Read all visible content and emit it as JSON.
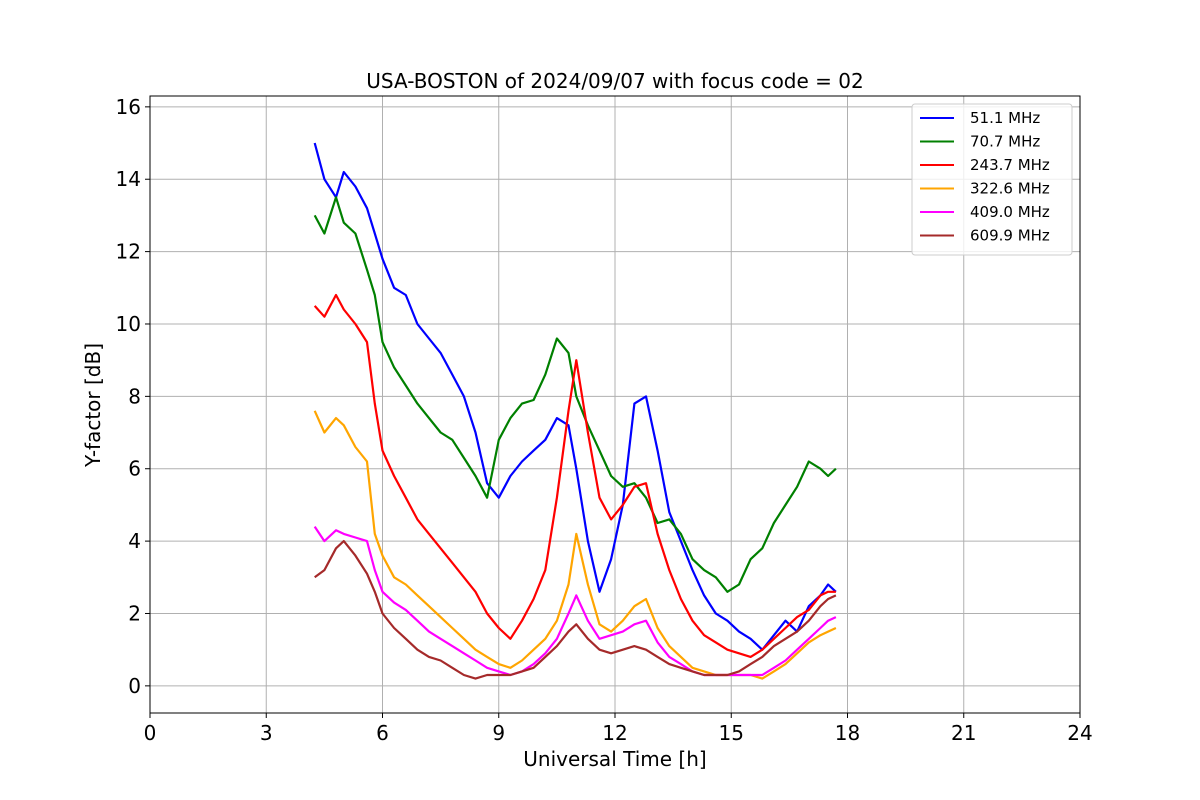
{
  "chart_data": {
    "type": "line",
    "title": "USA-BOSTON of 2024/09/07 with focus code = 02",
    "xlabel": "Universal Time [h]",
    "ylabel": "Y-factor [dB]",
    "xlim": [
      0,
      24
    ],
    "ylim": [
      -0.75,
      16.3
    ],
    "xticks": [
      0,
      3,
      6,
      9,
      12,
      15,
      18,
      21,
      24
    ],
    "yticks": [
      0,
      2,
      4,
      6,
      8,
      10,
      12,
      14,
      16
    ],
    "grid": true,
    "legend_position": "top-right",
    "series": [
      {
        "name": "51.1 MHz",
        "color": "#0000ff",
        "x": [
          4.25,
          4.5,
          4.8,
          5.0,
          5.3,
          5.6,
          5.8,
          6.0,
          6.3,
          6.6,
          6.9,
          7.2,
          7.5,
          7.8,
          8.1,
          8.4,
          8.7,
          9.0,
          9.3,
          9.6,
          9.9,
          10.2,
          10.5,
          10.8,
          11.0,
          11.3,
          11.6,
          11.9,
          12.2,
          12.5,
          12.8,
          13.1,
          13.4,
          13.7,
          14.0,
          14.3,
          14.6,
          14.9,
          15.2,
          15.5,
          15.8,
          16.1,
          16.4,
          16.7,
          17.0,
          17.3,
          17.5,
          17.7
        ],
        "y": [
          15.0,
          14.0,
          13.5,
          14.2,
          13.8,
          13.2,
          12.5,
          11.8,
          11.0,
          10.8,
          10.0,
          9.6,
          9.2,
          8.6,
          8.0,
          7.0,
          5.6,
          5.2,
          5.8,
          6.2,
          6.5,
          6.8,
          7.4,
          7.2,
          6.0,
          4.0,
          2.6,
          3.5,
          5.0,
          7.8,
          8.0,
          6.5,
          4.8,
          4.0,
          3.2,
          2.5,
          2.0,
          1.8,
          1.5,
          1.3,
          1.0,
          1.4,
          1.8,
          1.5,
          2.2,
          2.5,
          2.8,
          2.6
        ]
      },
      {
        "name": "70.7 MHz",
        "color": "#008000",
        "x": [
          4.25,
          4.5,
          4.8,
          5.0,
          5.3,
          5.6,
          5.8,
          6.0,
          6.3,
          6.6,
          6.9,
          7.2,
          7.5,
          7.8,
          8.1,
          8.4,
          8.7,
          9.0,
          9.3,
          9.6,
          9.9,
          10.2,
          10.5,
          10.8,
          11.0,
          11.3,
          11.6,
          11.9,
          12.2,
          12.5,
          12.8,
          13.1,
          13.4,
          13.7,
          14.0,
          14.3,
          14.6,
          14.9,
          15.2,
          15.5,
          15.8,
          16.1,
          16.4,
          16.7,
          17.0,
          17.3,
          17.5,
          17.7
        ],
        "y": [
          13.0,
          12.5,
          13.5,
          12.8,
          12.5,
          11.5,
          10.8,
          9.5,
          8.8,
          8.3,
          7.8,
          7.4,
          7.0,
          6.8,
          6.3,
          5.8,
          5.2,
          6.8,
          7.4,
          7.8,
          7.9,
          8.6,
          9.6,
          9.2,
          8.0,
          7.2,
          6.5,
          5.8,
          5.5,
          5.6,
          5.2,
          4.5,
          4.6,
          4.2,
          3.5,
          3.2,
          3.0,
          2.6,
          2.8,
          3.5,
          3.8,
          4.5,
          5.0,
          5.5,
          6.2,
          6.0,
          5.8,
          6.0
        ]
      },
      {
        "name": "243.7 MHz",
        "color": "#ff0000",
        "x": [
          4.25,
          4.5,
          4.8,
          5.0,
          5.3,
          5.6,
          5.8,
          6.0,
          6.3,
          6.6,
          6.9,
          7.2,
          7.5,
          7.8,
          8.1,
          8.4,
          8.7,
          9.0,
          9.3,
          9.6,
          9.9,
          10.2,
          10.5,
          10.8,
          11.0,
          11.3,
          11.6,
          11.9,
          12.2,
          12.5,
          12.8,
          13.1,
          13.4,
          13.7,
          14.0,
          14.3,
          14.6,
          14.9,
          15.2,
          15.5,
          15.8,
          16.1,
          16.4,
          16.7,
          17.0,
          17.3,
          17.5,
          17.7
        ],
        "y": [
          10.5,
          10.2,
          10.8,
          10.4,
          10.0,
          9.5,
          7.8,
          6.5,
          5.8,
          5.2,
          4.6,
          4.2,
          3.8,
          3.4,
          3.0,
          2.6,
          2.0,
          1.6,
          1.3,
          1.8,
          2.4,
          3.2,
          5.2,
          7.6,
          9.0,
          7.0,
          5.2,
          4.6,
          5.0,
          5.5,
          5.6,
          4.2,
          3.2,
          2.4,
          1.8,
          1.4,
          1.2,
          1.0,
          0.9,
          0.8,
          1.0,
          1.3,
          1.6,
          1.9,
          2.1,
          2.5,
          2.6,
          2.6
        ]
      },
      {
        "name": "322.6 MHz",
        "color": "#ffa500",
        "x": [
          4.25,
          4.5,
          4.8,
          5.0,
          5.3,
          5.6,
          5.8,
          6.0,
          6.3,
          6.6,
          6.9,
          7.2,
          7.5,
          7.8,
          8.1,
          8.4,
          8.7,
          9.0,
          9.3,
          9.6,
          9.9,
          10.2,
          10.5,
          10.8,
          11.0,
          11.3,
          11.6,
          11.9,
          12.2,
          12.5,
          12.8,
          13.1,
          13.4,
          13.7,
          14.0,
          14.3,
          14.6,
          14.9,
          15.2,
          15.5,
          15.8,
          16.1,
          16.4,
          16.7,
          17.0,
          17.3,
          17.5,
          17.7
        ],
        "y": [
          7.6,
          7.0,
          7.4,
          7.2,
          6.6,
          6.2,
          4.2,
          3.6,
          3.0,
          2.8,
          2.5,
          2.2,
          1.9,
          1.6,
          1.3,
          1.0,
          0.8,
          0.6,
          0.5,
          0.7,
          1.0,
          1.3,
          1.8,
          2.8,
          4.2,
          2.8,
          1.7,
          1.5,
          1.8,
          2.2,
          2.4,
          1.6,
          1.1,
          0.8,
          0.5,
          0.4,
          0.3,
          0.3,
          0.3,
          0.3,
          0.2,
          0.4,
          0.6,
          0.9,
          1.2,
          1.4,
          1.5,
          1.6
        ]
      },
      {
        "name": "409.0 MHz",
        "color": "#ff00ff",
        "x": [
          4.25,
          4.5,
          4.8,
          5.0,
          5.3,
          5.6,
          5.8,
          6.0,
          6.3,
          6.6,
          6.9,
          7.2,
          7.5,
          7.8,
          8.1,
          8.4,
          8.7,
          9.0,
          9.3,
          9.6,
          9.9,
          10.2,
          10.5,
          10.8,
          11.0,
          11.3,
          11.6,
          11.9,
          12.2,
          12.5,
          12.8,
          13.1,
          13.4,
          13.7,
          14.0,
          14.3,
          14.6,
          14.9,
          15.2,
          15.5,
          15.8,
          16.1,
          16.4,
          16.7,
          17.0,
          17.3,
          17.5,
          17.7
        ],
        "y": [
          4.4,
          4.0,
          4.3,
          4.2,
          4.1,
          4.0,
          3.2,
          2.6,
          2.3,
          2.1,
          1.8,
          1.5,
          1.3,
          1.1,
          0.9,
          0.7,
          0.5,
          0.4,
          0.3,
          0.4,
          0.6,
          0.9,
          1.3,
          2.0,
          2.5,
          1.8,
          1.3,
          1.4,
          1.5,
          1.7,
          1.8,
          1.2,
          0.8,
          0.6,
          0.4,
          0.3,
          0.3,
          0.3,
          0.3,
          0.3,
          0.3,
          0.5,
          0.7,
          1.0,
          1.3,
          1.6,
          1.8,
          1.9
        ]
      },
      {
        "name": "609.9 MHz",
        "color": "#a52a2a",
        "x": [
          4.25,
          4.5,
          4.8,
          5.0,
          5.3,
          5.6,
          5.8,
          6.0,
          6.3,
          6.6,
          6.9,
          7.2,
          7.5,
          7.8,
          8.1,
          8.4,
          8.7,
          9.0,
          9.3,
          9.6,
          9.9,
          10.2,
          10.5,
          10.8,
          11.0,
          11.3,
          11.6,
          11.9,
          12.2,
          12.5,
          12.8,
          13.1,
          13.4,
          13.7,
          14.0,
          14.3,
          14.6,
          14.9,
          15.2,
          15.5,
          15.8,
          16.1,
          16.4,
          16.7,
          17.0,
          17.3,
          17.5,
          17.7
        ],
        "y": [
          3.0,
          3.2,
          3.8,
          4.0,
          3.6,
          3.1,
          2.6,
          2.0,
          1.6,
          1.3,
          1.0,
          0.8,
          0.7,
          0.5,
          0.3,
          0.2,
          0.3,
          0.3,
          0.3,
          0.4,
          0.5,
          0.8,
          1.1,
          1.5,
          1.7,
          1.3,
          1.0,
          0.9,
          1.0,
          1.1,
          1.0,
          0.8,
          0.6,
          0.5,
          0.4,
          0.3,
          0.3,
          0.3,
          0.4,
          0.6,
          0.8,
          1.1,
          1.3,
          1.5,
          1.8,
          2.2,
          2.4,
          2.5
        ]
      }
    ]
  }
}
